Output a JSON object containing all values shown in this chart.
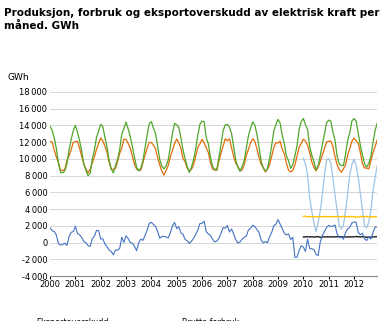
{
  "title": "Produksjon, forbruk og eksportoverskudd av elektrisk kraft per\nmåned. GWh",
  "ylabel": "GWh",
  "ylim": [
    -4000,
    19000
  ],
  "yticks": [
    -4000,
    -2000,
    0,
    2000,
    4000,
    6000,
    8000,
    10000,
    12000,
    14000,
    16000,
    18000
  ],
  "xlim": [
    2000.0,
    2012.92
  ],
  "xticks": [
    2000,
    2001,
    2002,
    2003,
    2004,
    2005,
    2006,
    2007,
    2008,
    2009,
    2010,
    2011,
    2012
  ],
  "colors": {
    "eksportoverskudd": "#4472C4",
    "forbruk_utvinning": "#1A1A1A",
    "forbruk_kraftintensiv": "#FFC000",
    "forbruk_alminnelig": "#9DC3E6",
    "brutto_forbruk": "#E36C09",
    "total_produksjon": "#4EA72A"
  },
  "n_months": 156,
  "start_year": 2000,
  "background_color": "#ffffff",
  "grid_color": "#C8C8C8"
}
